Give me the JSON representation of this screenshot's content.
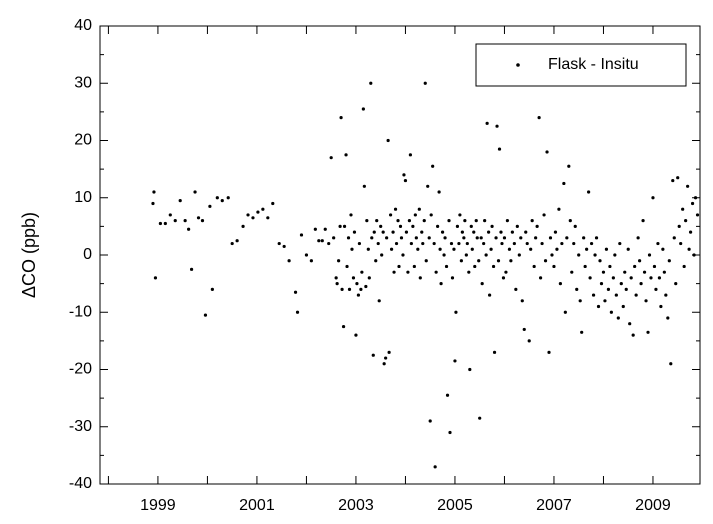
{
  "chart_data": {
    "type": "scatter",
    "ylabel": "ΔCO (ppb)",
    "xlim": [
      1997.83,
      2009.95
    ],
    "xticks": [
      1999,
      2001,
      2003,
      2005,
      2007,
      2009
    ],
    "ylim": [
      -40,
      40
    ],
    "yticks": [
      -40,
      -30,
      -20,
      -10,
      0,
      10,
      20,
      30,
      40
    ],
    "legend": "upper right",
    "series": [
      {
        "name": "Flask - Insitu",
        "color": "#000000",
        "x": [
          1998.9,
          1998.92,
          1998.95,
          1999.05,
          1999.15,
          1999.25,
          1999.35,
          1999.45,
          1999.55,
          1999.62,
          1999.68,
          1999.75,
          1999.82,
          1999.9,
          1999.96,
          2000.05,
          2000.1,
          2000.2,
          2000.3,
          2000.42,
          2000.5,
          2000.6,
          2000.72,
          2000.82,
          2000.92,
          2001.02,
          2001.12,
          2001.22,
          2001.32,
          2001.45,
          2001.55,
          2001.65,
          2001.78,
          2001.82,
          2001.9,
          2002.0,
          2002.1,
          2002.18,
          2002.25,
          2002.32,
          2002.38,
          2002.45,
          2002.5,
          2002.55,
          2002.6,
          2002.62,
          2002.65,
          2002.68,
          2002.7,
          2002.72,
          2002.75,
          2002.77,
          2002.8,
          2002.82,
          2002.85,
          2002.87,
          2002.9,
          2002.92,
          2002.95,
          2002.97,
          2003.0,
          2003.02,
          2003.05,
          2003.07,
          2003.1,
          2003.12,
          2003.15,
          2003.17,
          2003.2,
          2003.22,
          2003.25,
          2003.27,
          2003.3,
          2003.32,
          2003.35,
          2003.37,
          2003.4,
          2003.42,
          2003.45,
          2003.47,
          2003.5,
          2003.52,
          2003.55,
          2003.57,
          2003.6,
          2003.62,
          2003.65,
          2003.67,
          2003.7,
          2003.72,
          2003.75,
          2003.77,
          2003.8,
          2003.82,
          2003.85,
          2003.87,
          2003.9,
          2003.92,
          2003.95,
          2003.97,
          2004.0,
          2004.02,
          2004.05,
          2004.08,
          2004.1,
          2004.12,
          2004.15,
          2004.18,
          2004.2,
          2004.22,
          2004.25,
          2004.28,
          2004.3,
          2004.33,
          2004.35,
          2004.38,
          2004.4,
          2004.42,
          2004.45,
          2004.48,
          2004.5,
          2004.52,
          2004.55,
          2004.58,
          2004.6,
          2004.62,
          2004.65,
          2004.68,
          2004.7,
          2004.72,
          2004.75,
          2004.78,
          2004.8,
          2004.83,
          2004.85,
          2004.88,
          2004.9,
          2004.93,
          2004.95,
          2004.98,
          2005.0,
          2005.02,
          2005.05,
          2005.08,
          2005.1,
          2005.13,
          2005.15,
          2005.18,
          2005.2,
          2005.23,
          2005.25,
          2005.28,
          2005.3,
          2005.33,
          2005.35,
          2005.38,
          2005.4,
          2005.43,
          2005.45,
          2005.48,
          2005.5,
          2005.53,
          2005.55,
          2005.58,
          2005.6,
          2005.63,
          2005.65,
          2005.68,
          2005.7,
          2005.73,
          2005.75,
          2005.78,
          2005.8,
          2005.83,
          2005.85,
          2005.88,
          2005.9,
          2005.93,
          2005.95,
          2005.98,
          2006.0,
          2006.03,
          2006.06,
          2006.1,
          2006.13,
          2006.16,
          2006.2,
          2006.23,
          2006.26,
          2006.3,
          2006.33,
          2006.36,
          2006.4,
          2006.43,
          2006.46,
          2006.5,
          2006.53,
          2006.56,
          2006.6,
          2006.63,
          2006.66,
          2006.7,
          2006.73,
          2006.76,
          2006.8,
          2006.83,
          2006.86,
          2006.9,
          2006.93,
          2006.96,
          2007.0,
          2007.03,
          2007.06,
          2007.1,
          2007.13,
          2007.16,
          2007.2,
          2007.23,
          2007.26,
          2007.3,
          2007.33,
          2007.36,
          2007.4,
          2007.43,
          2007.46,
          2007.5,
          2007.53,
          2007.56,
          2007.6,
          2007.63,
          2007.66,
          2007.7,
          2007.73,
          2007.76,
          2007.8,
          2007.83,
          2007.86,
          2007.9,
          2007.93,
          2007.96,
          2008.0,
          2008.03,
          2008.06,
          2008.1,
          2008.13,
          2008.16,
          2008.2,
          2008.23,
          2008.26,
          2008.3,
          2008.33,
          2008.36,
          2008.4,
          2008.43,
          2008.46,
          2008.5,
          2008.53,
          2008.56,
          2008.6,
          2008.63,
          2008.66,
          2008.7,
          2008.73,
          2008.76,
          2008.8,
          2008.83,
          2008.86,
          2008.9,
          2008.93,
          2008.96,
          2009.0,
          2009.03,
          2009.06,
          2009.1,
          2009.13,
          2009.16,
          2009.2,
          2009.23,
          2009.26,
          2009.3,
          2009.33,
          2009.36,
          2009.4,
          2009.43,
          2009.46,
          2009.5,
          2009.53,
          2009.56,
          2009.6,
          2009.63,
          2009.66,
          2009.7,
          2009.73,
          2009.76,
          2009.8,
          2009.83,
          2009.86,
          2009.9
        ],
        "values": [
          9,
          11,
          -4,
          5.5,
          5.5,
          7,
          6,
          9.5,
          6,
          4.5,
          -2.5,
          11,
          6.5,
          6,
          -10.5,
          8.5,
          -6,
          10,
          9.5,
          10,
          2,
          2.5,
          5,
          7,
          6.5,
          7.5,
          8,
          6.5,
          9,
          2,
          1.5,
          -1,
          -6.5,
          -10,
          3.5,
          0,
          -1,
          4.5,
          2.5,
          2.5,
          4.5,
          2,
          17,
          3,
          -4,
          -5,
          -1,
          5,
          24,
          -6,
          -12.5,
          5,
          17.5,
          -2,
          3,
          -6,
          7,
          1,
          -4,
          4,
          -14,
          -5,
          -7,
          2,
          -6,
          -3,
          25.5,
          12,
          -5.5,
          6,
          1,
          -4,
          30,
          3,
          -17.5,
          4,
          -1,
          6,
          2,
          -8,
          5,
          0,
          4,
          -19,
          -18,
          3,
          20,
          -17,
          7,
          1,
          4,
          -3,
          8,
          2,
          6,
          -2,
          5,
          3,
          0,
          14,
          13,
          4,
          -3,
          6,
          17.5,
          2,
          5,
          -2,
          7,
          3,
          1,
          8,
          -4,
          4,
          2,
          6,
          30,
          -1,
          12,
          3,
          -29,
          7,
          15.5,
          2,
          -37,
          -3,
          5,
          11,
          1,
          -5,
          4,
          0,
          3,
          -2,
          -24.5,
          6,
          -31,
          2,
          -4,
          1,
          -18.5,
          -10,
          5,
          2,
          7,
          -1,
          4,
          3,
          6,
          0,
          2,
          -3,
          -20,
          5,
          1,
          4,
          -2,
          6,
          3,
          -1,
          -28.5,
          3,
          -5,
          2,
          6,
          0,
          23,
          4,
          -7,
          1,
          5,
          -2,
          -17,
          3,
          22.5,
          -1,
          18.5,
          4,
          2,
          -4,
          3,
          -3,
          6,
          1,
          -1,
          4,
          2,
          -6,
          5,
          0,
          3,
          -8,
          -13,
          4,
          2,
          -15,
          1,
          6,
          -2,
          3,
          5,
          24,
          -4,
          2,
          7,
          -1,
          18,
          -17,
          3,
          0,
          -2,
          4,
          1,
          8,
          -5,
          2,
          12.5,
          -10,
          3,
          15.5,
          6,
          -3,
          2,
          5,
          -6,
          0,
          -8,
          -13.5,
          3,
          -2,
          1,
          11,
          -4,
          2,
          -7,
          0,
          3,
          -9,
          -1,
          -5,
          -3,
          -8,
          1,
          -6,
          -2,
          -10,
          -4,
          0,
          -7,
          -11,
          2,
          -5,
          -9,
          -3,
          -6,
          1,
          -12,
          -4,
          -14,
          -2,
          -7,
          3,
          -1,
          -5,
          6,
          -3,
          -8,
          -13.5,
          0,
          -4,
          10,
          -2,
          -6,
          2,
          -4,
          -9,
          1,
          -3,
          -7,
          -11,
          -1,
          -19,
          13,
          3,
          -5,
          13.5,
          5,
          2,
          8,
          -2,
          6,
          12,
          1,
          4,
          9,
          0,
          10,
          7
        ]
      }
    ]
  }
}
